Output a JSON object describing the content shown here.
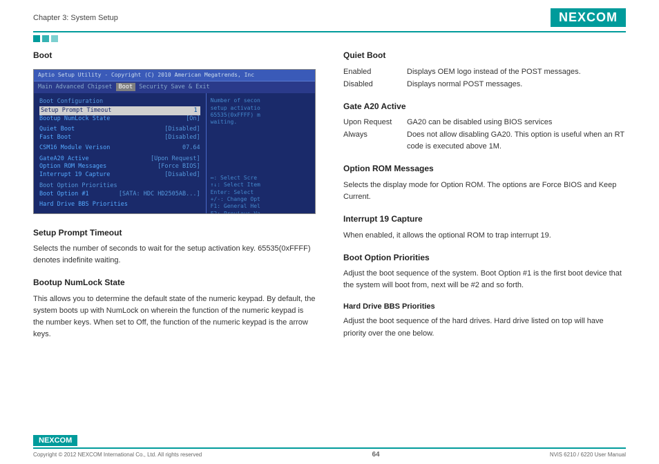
{
  "header": {
    "chapter": "Chapter 3: System Setup",
    "logo_text": "NEXCOM"
  },
  "left_col": {
    "title1": "Boot",
    "bios": {
      "topbar": "Aptio Setup Utility - Copyright (C) 2010 American Megatrends, Inc",
      "menu": {
        "items": [
          "Main",
          "Advanced",
          "Chipset"
        ],
        "active": "Boot",
        "tail": [
          "Security",
          "Save & Exit"
        ]
      },
      "left_lines": [
        {
          "k": "Boot Configuration",
          "v": "",
          "head": true
        },
        {
          "k": "Setup Prompt Timeout",
          "v": "1",
          "hl": true
        },
        {
          "k": "Bootup NumLock State",
          "v": "[On]"
        },
        {
          "gap": true
        },
        {
          "k": "Quiet Boot",
          "v": "[Disabled]"
        },
        {
          "k": "Fast Boot",
          "v": "[Disabled]"
        },
        {
          "gap": true
        },
        {
          "k": "CSM16 Module Verison",
          "v": "07.64"
        },
        {
          "gap": true
        },
        {
          "k": "GateA20 Active",
          "v": "[Upon Request]"
        },
        {
          "k": "Option ROM Messages",
          "v": "[Force BIOS]"
        },
        {
          "k": "Interrupt 19 Capture",
          "v": "[Disabled]"
        },
        {
          "gap": true
        },
        {
          "k": "Boot Option Priorities",
          "v": "",
          "head": true
        },
        {
          "k": "Boot Option #1",
          "v": "[SATA: HDC HD2505AB...]"
        },
        {
          "gap": true
        },
        {
          "k": "Hard Drive BBS Priorities",
          "v": ""
        }
      ],
      "right_top": "Number of secon\nsetup activatio\n65535(0xFFFF) m\nwaiting.",
      "right_help": "↔: Select Scre\n↑↓: Select Item\nEnter: Select\n+/-: Change Opt\nF1: General Hel\nF2: Previous Va"
    },
    "title2": "Setup Prompt Timeout",
    "body2": "Selects the number of seconds to wait for the setup activation key. 65535(0xFFFF) denotes indefinite waiting.",
    "title3": "Bootup NumLock State",
    "body3": "This allows you to determine the default state of the numeric keypad. By default, the system boots up with NumLock on wherein the function of the numeric keypad is the number keys. When set to Off, the function of the numeric keypad is the arrow keys."
  },
  "right_col": {
    "title1": "Quiet Boot",
    "qb": [
      {
        "term": "Enabled",
        "def": "Displays OEM logo instead of the POST messages."
      },
      {
        "term": "Disabled",
        "def": "Displays normal POST messages."
      }
    ],
    "title2": "Gate A20 Active",
    "ga": [
      {
        "term": "Upon Request",
        "def": "GA20 can be disabled using BIOS services"
      },
      {
        "term": "Always",
        "def": "Does not allow disabling GA20. This option is useful when an RT code is executed above 1M."
      }
    ],
    "title3": "Option ROM Messages",
    "body3": "Selects the display mode for Option ROM. The options are Force BIOS and Keep Current.",
    "title4": "Interrupt 19 Capture",
    "body4": "When enabled, it allows the optional ROM to trap interrupt 19.",
    "title5": "Boot Option Priorities",
    "body5": "Adjust the boot sequence of the system. Boot Option #1 is the first boot device that the system will boot from, next will be #2 and so forth.",
    "sub1": "Hard Drive BBS Priorities",
    "subbody1": "Adjust the boot sequence of the hard drives. Hard drive listed on top will have priority over the one below."
  },
  "footer": {
    "logo_text": "NEXCOM",
    "copyright": "Copyright © 2012 NEXCOM International Co., Ltd. All rights reserved",
    "page": "64",
    "manual": "NViS 6210 / 6220 User Manual"
  },
  "colors": {
    "brand": "#009b9b",
    "bios_bg": "#1a2a6a",
    "bios_text": "#55aaff"
  }
}
